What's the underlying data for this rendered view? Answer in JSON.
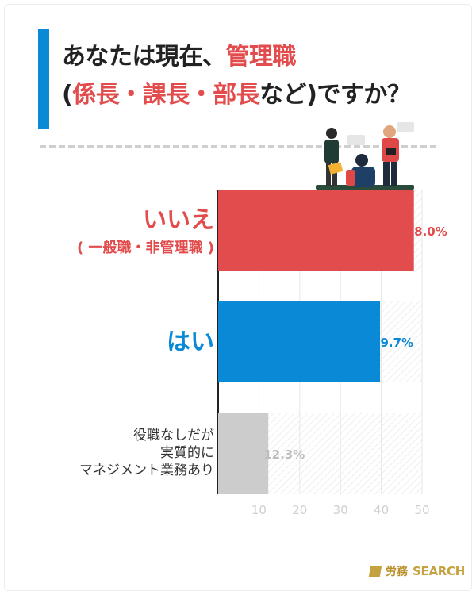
{
  "title": {
    "line1_prefix": "あなたは現在、",
    "line1_highlight": "管理職",
    "line2_open": "(",
    "line2_highlight": "係長・課長・部長",
    "line2_rest": "など)ですか？"
  },
  "categories": {
    "no": {
      "line1": "いいえ",
      "line2": "( 一般職・非管理職 )"
    },
    "yes": {
      "line1": "はい"
    },
    "other": {
      "line1": "役職なしだが",
      "line2": "実質的に",
      "line3": "マネジメント業務あり"
    }
  },
  "brand": {
    "name_jp": "労務",
    "name_en": "SEARCH"
  },
  "colors": {
    "no": "#e34c4c",
    "yes": "#0a8ad6",
    "other": "#cccccc",
    "accent": "#0a8ad6",
    "brand": "#c5a240"
  },
  "chart_data": {
    "type": "bar",
    "orientation": "horizontal",
    "categories": [
      "いいえ ( 一般職・非管理職 )",
      "はい",
      "役職なしだが実質的にマネジメント業務あり"
    ],
    "values": [
      48.0,
      39.7,
      12.3
    ],
    "value_labels": [
      "48.0%",
      "39.7%",
      "12.3%"
    ],
    "xticks": [
      10,
      20,
      30,
      40,
      50
    ],
    "xlim": [
      0,
      50
    ],
    "grid": true
  }
}
